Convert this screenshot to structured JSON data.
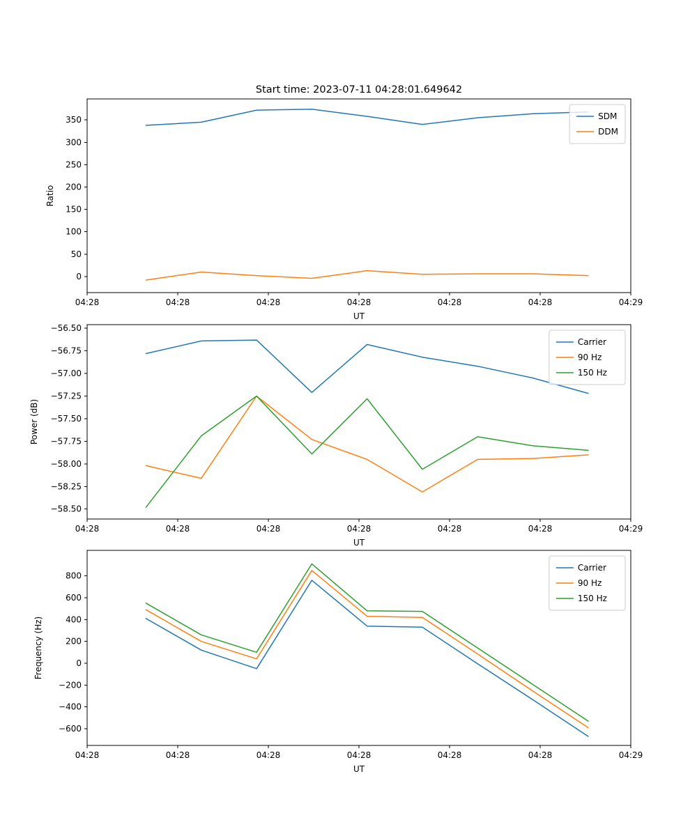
{
  "figure": {
    "title": "Start time: 2023-07-11 04:28:01.649642",
    "background_color": "#ffffff",
    "axes_color": "#000000"
  },
  "palette": {
    "blue": "#1f77b4",
    "orange": "#ff7f0e",
    "green": "#2ca02c"
  },
  "chart_data": [
    {
      "type": "line",
      "name": "ratio-plot",
      "title": "Start time: 2023-07-11 04:28:01.649642",
      "xlabel": "UT",
      "ylabel": "Ratio",
      "xlim": [
        0,
        60
      ],
      "ylim": [
        -36,
        397
      ],
      "x_units": "seconds after 04:28:00 (estimated from tick spacing)",
      "x": [
        6.5,
        12.6,
        18.7,
        24.8,
        30.9,
        37.0,
        43.1,
        49.2,
        55.3
      ],
      "xticks": {
        "values": [
          0,
          10,
          20,
          30,
          40,
          50,
          60
        ],
        "labels": [
          "04:28",
          "04:28",
          "04:28",
          "04:28",
          "04:28",
          "04:28",
          "04:29"
        ]
      },
      "yticks": {
        "values": [
          0,
          50,
          100,
          150,
          200,
          250,
          300,
          350
        ],
        "labels": [
          "0",
          "50",
          "100",
          "150",
          "200",
          "250",
          "300",
          "350"
        ]
      },
      "grid": false,
      "legend": {
        "position": "upper right",
        "entries": [
          "SDM",
          "DDM"
        ]
      },
      "series": [
        {
          "name": "SDM",
          "color": "#1f77b4",
          "values": [
            338,
            345,
            372,
            374,
            358,
            340,
            355,
            364,
            368
          ]
        },
        {
          "name": "DDM",
          "color": "#ff7f0e",
          "values": [
            -8,
            10,
            2,
            -4,
            13,
            5,
            6,
            6,
            2
          ]
        }
      ]
    },
    {
      "type": "line",
      "name": "power-plot",
      "title": "",
      "xlabel": "UT",
      "ylabel": "Power (dB)",
      "xlim": [
        0,
        60
      ],
      "ylim": [
        -58.61,
        -56.46
      ],
      "x_units": "seconds after 04:28:00 (estimated from tick spacing)",
      "x": [
        6.5,
        12.6,
        18.7,
        24.8,
        30.9,
        37.0,
        43.1,
        49.2,
        55.3
      ],
      "xticks": {
        "values": [
          0,
          10,
          20,
          30,
          40,
          50,
          60
        ],
        "labels": [
          "04:28",
          "04:28",
          "04:28",
          "04:28",
          "04:28",
          "04:28",
          "04:29"
        ]
      },
      "yticks": {
        "values": [
          -56.5,
          -56.75,
          -57.0,
          -57.25,
          -57.5,
          -57.75,
          -58.0,
          -58.25,
          -58.5
        ],
        "labels": [
          "−56.50",
          "−56.75",
          "−57.00",
          "−57.25",
          "−57.50",
          "−57.75",
          "−58.00",
          "−58.25",
          "−58.50"
        ]
      },
      "grid": false,
      "legend": {
        "position": "upper right",
        "entries": [
          "Carrier",
          "90 Hz",
          "150 Hz"
        ]
      },
      "series": [
        {
          "name": "Carrier",
          "color": "#1f77b4",
          "values": [
            -56.78,
            -56.64,
            -56.63,
            -57.21,
            -56.68,
            -56.82,
            -56.92,
            -57.05,
            -57.22
          ]
        },
        {
          "name": "90 Hz",
          "color": "#ff7f0e",
          "values": [
            -58.02,
            -58.16,
            -57.25,
            -57.73,
            -57.95,
            -58.31,
            -57.95,
            -57.94,
            -57.9
          ]
        },
        {
          "name": "150 Hz",
          "color": "#2ca02c",
          "values": [
            -58.48,
            -57.69,
            -57.25,
            -57.89,
            -57.28,
            -58.06,
            -57.7,
            -57.8,
            -57.85
          ]
        }
      ]
    },
    {
      "type": "line",
      "name": "frequency-plot",
      "title": "",
      "xlabel": "UT",
      "ylabel": "Frequency (Hz)",
      "xlim": [
        0,
        60
      ],
      "ylim": [
        -753,
        1034
      ],
      "x_units": "seconds after 04:28:00 (estimated from tick spacing)",
      "x": [
        6.5,
        12.6,
        18.7,
        24.8,
        30.9,
        37.0,
        43.1,
        49.2,
        55.3
      ],
      "xticks": {
        "values": [
          0,
          10,
          20,
          30,
          40,
          50,
          60
        ],
        "labels": [
          "04:28",
          "04:28",
          "04:28",
          "04:28",
          "04:28",
          "04:28",
          "04:29"
        ]
      },
      "yticks": {
        "values": [
          800,
          600,
          400,
          200,
          0,
          -200,
          -400,
          -600
        ],
        "labels": [
          "800",
          "600",
          "400",
          "200",
          "0",
          "−200",
          "−400",
          "−600"
        ]
      },
      "grid": false,
      "legend": {
        "position": "upper right",
        "entries": [
          "Carrier",
          "90 Hz",
          "150 Hz"
        ]
      },
      "series": [
        {
          "name": "Carrier",
          "color": "#1f77b4",
          "values": [
            410,
            120,
            -50,
            760,
            340,
            330,
            -5,
            -335,
            -670
          ]
        },
        {
          "name": "90 Hz",
          "color": "#ff7f0e",
          "values": [
            490,
            200,
            40,
            850,
            430,
            420,
            85,
            -255,
            -590
          ]
        },
        {
          "name": "150 Hz",
          "color": "#2ca02c",
          "values": [
            550,
            260,
            100,
            910,
            480,
            475,
            140,
            -195,
            -530
          ]
        }
      ]
    }
  ]
}
